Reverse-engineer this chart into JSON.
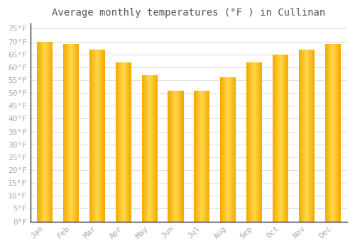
{
  "title": "Average monthly temperatures (°F ) in Cullinan",
  "months": [
    "Jan",
    "Feb",
    "Mar",
    "Apr",
    "May",
    "Jun",
    "Jul",
    "Aug",
    "Sep",
    "Oct",
    "Nov",
    "Dec"
  ],
  "values": [
    70,
    69,
    67,
    62,
    57,
    51,
    51,
    56,
    62,
    65,
    67,
    69
  ],
  "bar_color_left": "#F5A800",
  "bar_color_center": "#FFD84C",
  "bar_color_right": "#F5A800",
  "background_color": "#ffffff",
  "grid_color": "#dddddd",
  "yticks": [
    0,
    5,
    10,
    15,
    20,
    25,
    30,
    35,
    40,
    45,
    50,
    55,
    60,
    65,
    70,
    75
  ],
  "ylim": [
    0,
    77
  ],
  "title_fontsize": 10,
  "tick_fontsize": 8,
  "title_color": "#555555",
  "tick_color": "#aaaaaa",
  "bar_width": 0.6,
  "n_gradient_steps": 50
}
